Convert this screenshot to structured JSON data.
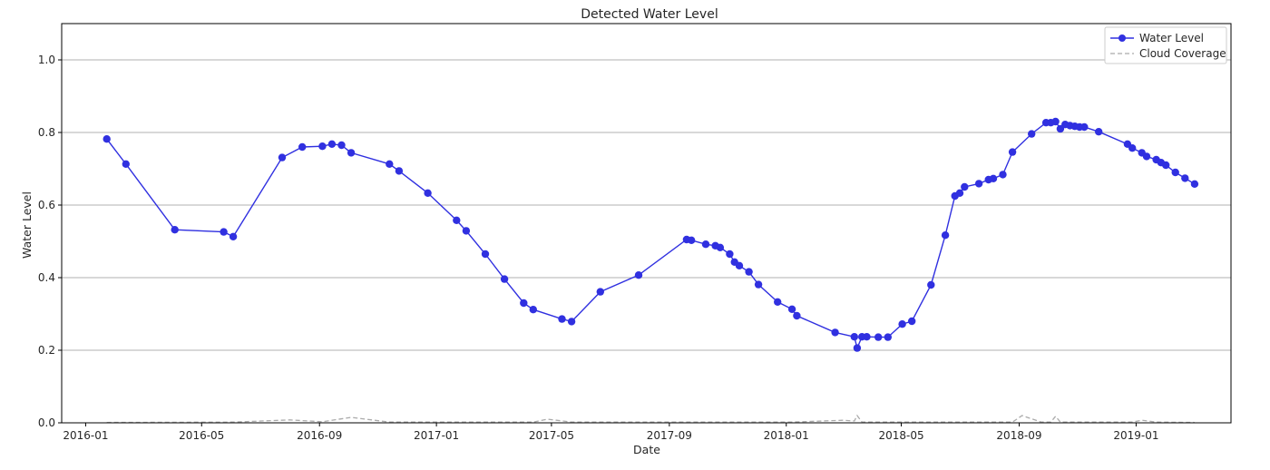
{
  "chart_data": {
    "type": "line",
    "title": "Detected Water Level",
    "xlabel": "Date",
    "ylabel": "Water Level",
    "xlim": [
      "2015-12-07",
      "2019-04-10"
    ],
    "ylim": [
      0,
      1.1
    ],
    "x_ticks": [
      "2016-01-01",
      "2016-05-01",
      "2016-09-01",
      "2017-01-01",
      "2017-05-01",
      "2017-09-01",
      "2018-01-01",
      "2018-05-01",
      "2018-09-01",
      "2019-01-01"
    ],
    "x_tick_labels": [
      "2016-01",
      "2016-05",
      "2016-09",
      "2017-01",
      "2017-05",
      "2017-09",
      "2018-01",
      "2018-05",
      "2018-09",
      "2019-01"
    ],
    "y_ticks": [
      0.0,
      0.2,
      0.4,
      0.6,
      0.8,
      1.0
    ],
    "y_tick_labels": [
      "0.0",
      "0.2",
      "0.4",
      "0.6",
      "0.8",
      "1.0"
    ],
    "grid": "horizontal",
    "legend_position": "top-right",
    "series": [
      {
        "name": "Water Level",
        "color": "#3030e0",
        "style": "line-with-circle-markers",
        "points": [
          [
            "2016-01-23",
            0.782
          ],
          [
            "2016-02-12",
            0.713
          ],
          [
            "2016-04-03",
            0.532
          ],
          [
            "2016-05-24",
            0.526
          ],
          [
            "2016-06-03",
            0.513
          ],
          [
            "2016-07-24",
            0.731
          ],
          [
            "2016-08-14",
            0.76
          ],
          [
            "2016-09-04",
            0.762
          ],
          [
            "2016-09-14",
            0.768
          ],
          [
            "2016-09-24",
            0.765
          ],
          [
            "2016-10-04",
            0.744
          ],
          [
            "2016-11-13",
            0.713
          ],
          [
            "2016-11-23",
            0.694
          ],
          [
            "2016-12-23",
            0.633
          ],
          [
            "2017-01-22",
            0.558
          ],
          [
            "2017-02-01",
            0.529
          ],
          [
            "2017-02-21",
            0.465
          ],
          [
            "2017-03-13",
            0.396
          ],
          [
            "2017-04-02",
            0.33
          ],
          [
            "2017-04-12",
            0.312
          ],
          [
            "2017-05-12",
            0.286
          ],
          [
            "2017-05-22",
            0.279
          ],
          [
            "2017-06-21",
            0.361
          ],
          [
            "2017-07-31",
            0.407
          ],
          [
            "2017-09-19",
            0.505
          ],
          [
            "2017-09-24",
            0.503
          ],
          [
            "2017-10-09",
            0.492
          ],
          [
            "2017-10-19",
            0.488
          ],
          [
            "2017-10-24",
            0.483
          ],
          [
            "2017-11-03",
            0.465
          ],
          [
            "2017-11-08",
            0.443
          ],
          [
            "2017-11-13",
            0.433
          ],
          [
            "2017-11-23",
            0.416
          ],
          [
            "2017-12-03",
            0.381
          ],
          [
            "2017-12-23",
            0.333
          ],
          [
            "2018-01-07",
            0.313
          ],
          [
            "2018-01-12",
            0.295
          ],
          [
            "2018-02-21",
            0.249
          ],
          [
            "2018-03-13",
            0.237
          ],
          [
            "2018-03-16",
            0.206
          ],
          [
            "2018-03-21",
            0.237
          ],
          [
            "2018-03-26",
            0.237
          ],
          [
            "2018-04-07",
            0.236
          ],
          [
            "2018-04-17",
            0.236
          ],
          [
            "2018-05-02",
            0.272
          ],
          [
            "2018-05-12",
            0.28
          ],
          [
            "2018-06-01",
            0.38
          ],
          [
            "2018-06-16",
            0.517
          ],
          [
            "2018-06-26",
            0.625
          ],
          [
            "2018-07-01",
            0.633
          ],
          [
            "2018-07-06",
            0.65
          ],
          [
            "2018-07-21",
            0.659
          ],
          [
            "2018-07-31",
            0.67
          ],
          [
            "2018-08-05",
            0.673
          ],
          [
            "2018-08-15",
            0.684
          ],
          [
            "2018-08-25",
            0.746
          ],
          [
            "2018-09-14",
            0.796
          ],
          [
            "2018-09-29",
            0.827
          ],
          [
            "2018-10-04",
            0.827
          ],
          [
            "2018-10-09",
            0.83
          ],
          [
            "2018-10-14",
            0.81
          ],
          [
            "2018-10-19",
            0.822
          ],
          [
            "2018-10-24",
            0.819
          ],
          [
            "2018-10-29",
            0.817
          ],
          [
            "2018-11-03",
            0.815
          ],
          [
            "2018-11-08",
            0.815
          ],
          [
            "2018-11-23",
            0.802
          ],
          [
            "2018-12-23",
            0.768
          ],
          [
            "2018-12-28",
            0.757
          ],
          [
            "2019-01-07",
            0.744
          ],
          [
            "2019-01-12",
            0.734
          ],
          [
            "2019-01-22",
            0.725
          ],
          [
            "2019-01-27",
            0.717
          ],
          [
            "2019-02-01",
            0.71
          ],
          [
            "2019-02-11",
            0.69
          ],
          [
            "2019-02-21",
            0.674
          ],
          [
            "2019-03-03",
            0.658
          ]
        ]
      },
      {
        "name": "Cloud Coverage",
        "color": "#aaaaaa",
        "style": "dashed-line",
        "points": [
          [
            "2016-01-23",
            0.001
          ],
          [
            "2016-06-03",
            0.002
          ],
          [
            "2016-08-01",
            0.008
          ],
          [
            "2016-09-04",
            0.003
          ],
          [
            "2016-10-04",
            0.015
          ],
          [
            "2016-11-13",
            0.002
          ],
          [
            "2017-04-12",
            0.002
          ],
          [
            "2017-04-27",
            0.01
          ],
          [
            "2017-05-22",
            0.002
          ],
          [
            "2018-01-07",
            0.002
          ],
          [
            "2018-03-01",
            0.007
          ],
          [
            "2018-03-13",
            0.005
          ],
          [
            "2018-03-16",
            0.02
          ],
          [
            "2018-03-21",
            0.002
          ],
          [
            "2018-08-25",
            0.002
          ],
          [
            "2018-09-04",
            0.02
          ],
          [
            "2018-09-24",
            0.002
          ],
          [
            "2018-10-04",
            0.002
          ],
          [
            "2018-10-09",
            0.018
          ],
          [
            "2018-10-14",
            0.002
          ],
          [
            "2018-12-28",
            0.002
          ],
          [
            "2019-01-07",
            0.007
          ],
          [
            "2019-01-22",
            0.002
          ],
          [
            "2019-03-03",
            0.001
          ]
        ]
      }
    ]
  }
}
